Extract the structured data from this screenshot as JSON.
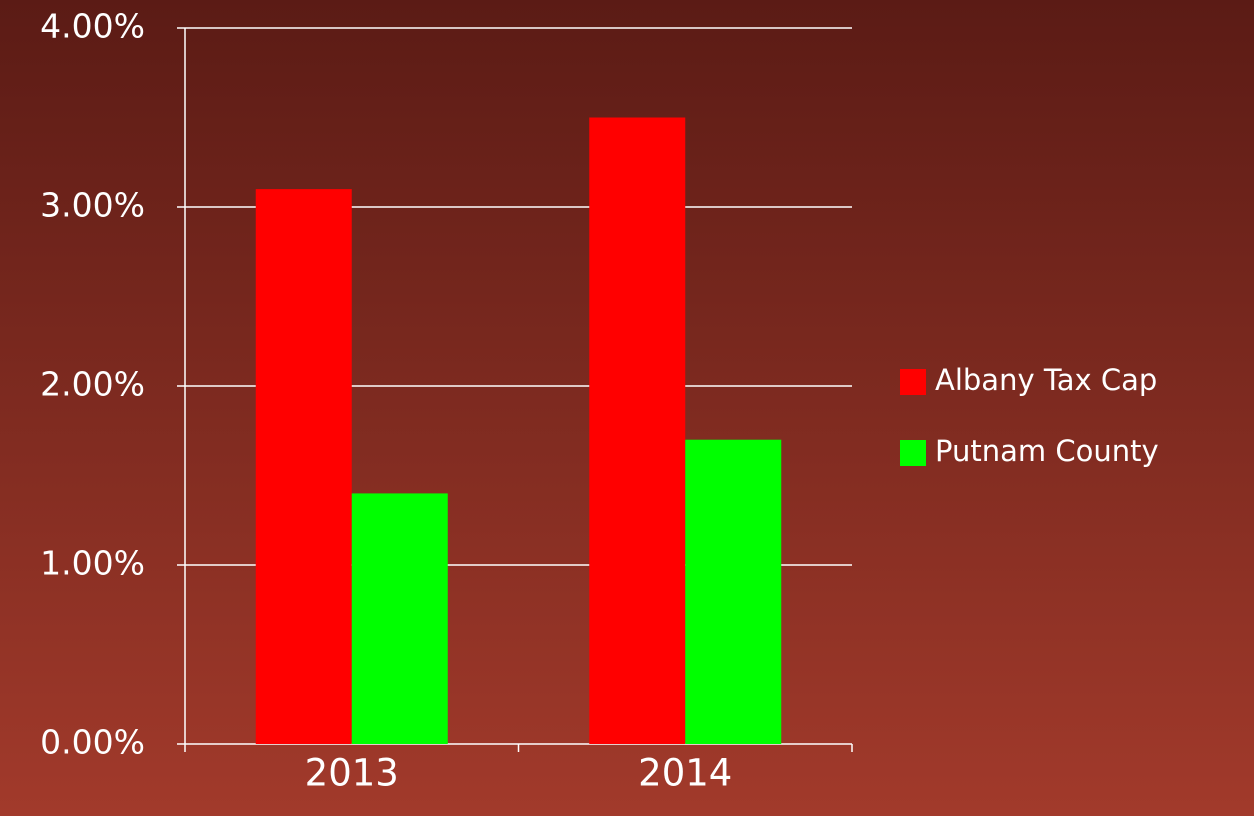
{
  "chart_data": {
    "type": "bar",
    "categories": [
      "2013",
      "2014"
    ],
    "series": [
      {
        "name": "Albany Tax Cap",
        "color": "#ff0000",
        "values": [
          3.1,
          3.5
        ]
      },
      {
        "name": "Putnam County",
        "color": "#00ff00",
        "values": [
          1.4,
          1.7
        ]
      }
    ],
    "ylim": [
      0,
      4
    ],
    "yticks": [
      {
        "value": 0,
        "label": "0.00%"
      },
      {
        "value": 1,
        "label": "1.00%"
      },
      {
        "value": 2,
        "label": "2.00%"
      },
      {
        "value": 3,
        "label": "3.00%"
      },
      {
        "value": 4,
        "label": "4.00%"
      }
    ],
    "grid": true,
    "legend": "right"
  }
}
